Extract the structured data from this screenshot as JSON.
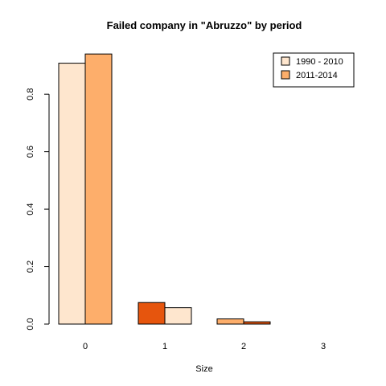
{
  "chart_data": {
    "type": "bar",
    "title": "Failed company in \"Abruzzo\" by period",
    "xlabel": "Size",
    "ylabel": "",
    "categories": [
      "0",
      "1",
      "2",
      "3"
    ],
    "ylim": [
      0,
      0.96
    ],
    "yticks": [
      "0.0",
      "0.2",
      "0.4",
      "0.6",
      "0.8"
    ],
    "series": [
      {
        "name": "1990 - 2010",
        "values": [
          0.908,
          0.075,
          0.018,
          0.0
        ]
      },
      {
        "name": "2011-2014",
        "values": [
          0.94,
          0.057,
          0.008,
          0.0
        ]
      }
    ],
    "bar_colors": [
      [
        "#FEE6CE",
        "#FDAE6B"
      ],
      [
        "#E6550D",
        "#FEE6CE"
      ],
      [
        "#FDAE6B",
        "#E6550D"
      ],
      [
        "#FEE6CE",
        "#FDAE6B"
      ]
    ],
    "legend": {
      "position": "top-right",
      "colors": [
        "#FEE6CE",
        "#FDAE6B"
      ]
    }
  }
}
